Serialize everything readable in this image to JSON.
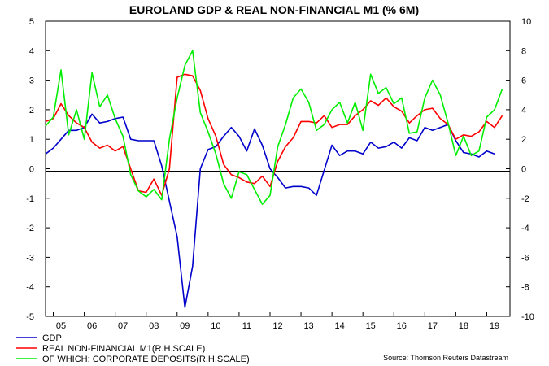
{
  "chart_data": {
    "type": "line",
    "title": "EUROLAND GDP & REAL NON-FINANCIAL M1 (% 6M)",
    "source": "Source: Thomson Reuters Datastream",
    "x_tick_labels": [
      "05",
      "06",
      "07",
      "08",
      "09",
      "10",
      "11",
      "12",
      "13",
      "14",
      "15",
      "16",
      "17",
      "18",
      "19"
    ],
    "xlim": [
      2004.75,
      2019.75
    ],
    "ylim_left": [
      -5,
      5
    ],
    "ylim_right": [
      -10,
      10
    ],
    "left_ticks": [
      -5,
      -4,
      -3,
      -2,
      -1,
      0,
      1,
      2,
      3,
      4,
      5
    ],
    "right_ticks": [
      -10,
      -8,
      -6,
      -4,
      -2,
      0,
      2,
      4,
      6,
      8,
      10
    ],
    "series": [
      {
        "name": "GDP",
        "axis": "left",
        "color": "#0000cc",
        "x": [
          2004.75,
          2005.0,
          2005.25,
          2005.5,
          2005.75,
          2006.0,
          2006.25,
          2006.5,
          2006.75,
          2007.0,
          2007.25,
          2007.5,
          2007.75,
          2008.0,
          2008.25,
          2008.5,
          2008.75,
          2009.0,
          2009.25,
          2009.5,
          2009.75,
          2010.0,
          2010.25,
          2010.5,
          2010.75,
          2011.0,
          2011.25,
          2011.5,
          2011.75,
          2012.0,
          2012.25,
          2012.5,
          2012.75,
          2013.0,
          2013.25,
          2013.5,
          2013.75,
          2014.0,
          2014.25,
          2014.5,
          2014.75,
          2015.0,
          2015.25,
          2015.5,
          2015.75,
          2016.0,
          2016.25,
          2016.5,
          2016.75,
          2017.0,
          2017.25,
          2017.5,
          2017.75,
          2018.0,
          2018.25,
          2018.5,
          2018.75,
          2019.0,
          2019.25
        ],
        "values": [
          0.5,
          0.7,
          1.0,
          1.3,
          1.3,
          1.4,
          1.85,
          1.55,
          1.6,
          1.7,
          1.75,
          1.0,
          0.95,
          0.95,
          0.95,
          0.1,
          -1.1,
          -2.3,
          -4.7,
          -3.3,
          0.0,
          0.65,
          0.75,
          1.1,
          1.4,
          1.1,
          0.6,
          1.35,
          0.8,
          0.0,
          -0.3,
          -0.65,
          -0.6,
          -0.6,
          -0.65,
          -0.9,
          -0.05,
          0.8,
          0.45,
          0.6,
          0.6,
          0.5,
          0.9,
          0.7,
          0.75,
          0.9,
          0.7,
          1.05,
          0.95,
          1.4,
          1.3,
          1.4,
          1.5,
          0.95,
          0.55,
          0.5,
          0.4,
          0.6,
          0.5
        ]
      },
      {
        "name": "REAL NON-FINANCIAL M1(R.H.SCALE)",
        "axis": "right",
        "color": "#ff0000",
        "x": [
          2004.75,
          2005.0,
          2005.25,
          2005.5,
          2005.75,
          2006.0,
          2006.25,
          2006.5,
          2006.75,
          2007.0,
          2007.25,
          2007.5,
          2007.75,
          2008.0,
          2008.25,
          2008.5,
          2008.75,
          2009.0,
          2009.25,
          2009.5,
          2009.75,
          2010.0,
          2010.25,
          2010.5,
          2010.75,
          2011.0,
          2011.25,
          2011.5,
          2011.75,
          2012.0,
          2012.25,
          2012.5,
          2012.75,
          2013.0,
          2013.25,
          2013.5,
          2013.75,
          2014.0,
          2014.25,
          2014.5,
          2014.75,
          2015.0,
          2015.25,
          2015.5,
          2015.75,
          2016.0,
          2016.25,
          2016.5,
          2016.75,
          2017.0,
          2017.25,
          2017.5,
          2017.75,
          2018.0,
          2018.25,
          2018.5,
          2018.75,
          2019.0,
          2019.25,
          2019.5
        ],
        "values": [
          3.2,
          3.4,
          4.4,
          3.6,
          3.1,
          2.8,
          1.8,
          1.4,
          1.6,
          1.2,
          1.5,
          0.0,
          -1.5,
          -1.6,
          -0.7,
          -1.8,
          0.0,
          6.2,
          6.4,
          6.3,
          5.3,
          3.4,
          2.2,
          0.3,
          -0.4,
          -0.6,
          -0.9,
          -1.0,
          -0.5,
          -1.2,
          0.5,
          1.5,
          2.1,
          3.2,
          3.2,
          3.1,
          3.6,
          2.8,
          3.0,
          3.0,
          3.6,
          4.0,
          4.6,
          4.3,
          4.8,
          4.2,
          3.9,
          3.1,
          3.6,
          4.0,
          4.1,
          3.4,
          3.0,
          2.0,
          2.3,
          2.2,
          2.5,
          3.2,
          2.8,
          3.6
        ]
      },
      {
        "name": "OF WHICH: CORPORATE DEPOSITS(R.H.SCALE)",
        "axis": "right",
        "color": "#00ee00",
        "x": [
          2004.75,
          2005.0,
          2005.25,
          2005.5,
          2005.75,
          2006.0,
          2006.25,
          2006.5,
          2006.75,
          2007.0,
          2007.25,
          2007.5,
          2007.75,
          2008.0,
          2008.25,
          2008.5,
          2008.75,
          2009.0,
          2009.25,
          2009.5,
          2009.75,
          2010.0,
          2010.25,
          2010.5,
          2010.75,
          2011.0,
          2011.25,
          2011.5,
          2011.75,
          2012.0,
          2012.25,
          2012.5,
          2012.75,
          2013.0,
          2013.25,
          2013.5,
          2013.75,
          2014.0,
          2014.25,
          2014.5,
          2014.75,
          2015.0,
          2015.25,
          2015.5,
          2015.75,
          2016.0,
          2016.25,
          2016.5,
          2016.75,
          2017.0,
          2017.25,
          2017.5,
          2017.75,
          2018.0,
          2018.25,
          2018.5,
          2018.75,
          2019.0,
          2019.25,
          2019.5
        ],
        "values": [
          2.9,
          3.5,
          6.7,
          2.3,
          4.0,
          2.0,
          6.5,
          4.2,
          5.0,
          3.4,
          2.2,
          -0.4,
          -1.5,
          -1.9,
          -1.4,
          -2.1,
          2.0,
          4.8,
          7.0,
          8.0,
          3.8,
          2.5,
          1.0,
          -1.0,
          -2.0,
          -0.2,
          -0.4,
          -1.4,
          -2.4,
          -1.8,
          1.5,
          3.0,
          4.8,
          5.4,
          4.5,
          2.6,
          3.0,
          4.0,
          4.5,
          3.1,
          4.5,
          2.6,
          6.4,
          5.1,
          5.5,
          4.4,
          4.8,
          2.4,
          2.5,
          4.8,
          6.0,
          5.0,
          3.1,
          0.9,
          2.2,
          0.9,
          1.2,
          3.5,
          4.0,
          5.4
        ]
      }
    ]
  },
  "legend": [
    {
      "label": "GDP",
      "color": "#0000cc"
    },
    {
      "label": "REAL NON-FINANCIAL M1(R.H.SCALE)",
      "color": "#ff0000"
    },
    {
      "label": "OF WHICH: CORPORATE DEPOSITS(R.H.SCALE)",
      "color": "#00ee00"
    }
  ]
}
